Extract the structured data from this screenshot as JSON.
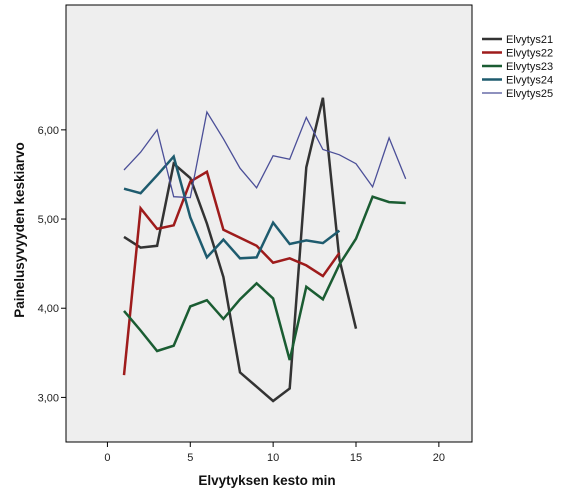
{
  "chart_data": {
    "type": "line",
    "xlabel": "Elvytyksen kesto min",
    "ylabel": "Painelusyvyyden keskiarvo",
    "xlim": [
      -2.5,
      22
    ],
    "ylim": [
      2.5,
      7.4
    ],
    "xticks": [
      0,
      5,
      10,
      15,
      20
    ],
    "yticks": [
      3,
      4,
      5,
      6
    ],
    "xtick_labels": [
      "0",
      "5",
      "10",
      "15",
      "20"
    ],
    "ytick_labels": [
      "3,00",
      "4,00",
      "5,00",
      "6,00"
    ],
    "grid": false,
    "background": "#eeeeee",
    "legend_position": "right",
    "series": [
      {
        "name": "Elvytys21",
        "color": "#333333",
        "width": 2.5,
        "x": [
          1,
          2,
          3,
          4,
          5,
          6,
          7,
          8,
          9,
          10,
          11,
          12,
          13,
          14,
          15
        ],
        "y": [
          4.8,
          4.68,
          4.7,
          5.62,
          5.46,
          4.95,
          4.35,
          3.28,
          3.12,
          2.96,
          3.1,
          5.58,
          6.36,
          4.55,
          3.77
        ]
      },
      {
        "name": "Elvytys22",
        "color": "#9e1b1b",
        "width": 2.5,
        "x": [
          1,
          2,
          3,
          4,
          5,
          6,
          7,
          8,
          9,
          10,
          11,
          12,
          13,
          14
        ],
        "y": [
          3.25,
          5.12,
          4.89,
          4.93,
          5.42,
          5.53,
          4.88,
          4.79,
          4.7,
          4.51,
          4.56,
          4.48,
          4.36,
          4.62
        ]
      },
      {
        "name": "Elvytys23",
        "color": "#1a5c32",
        "width": 2.5,
        "x": [
          1,
          2,
          3,
          4,
          5,
          6,
          7,
          8,
          9,
          10,
          11,
          12,
          13,
          14,
          15,
          16,
          17,
          18
        ],
        "y": [
          3.97,
          3.75,
          3.52,
          3.58,
          4.02,
          4.09,
          3.88,
          4.1,
          4.28,
          4.11,
          3.42,
          4.24,
          4.1,
          4.49,
          4.78,
          5.25,
          5.19,
          5.18
        ]
      },
      {
        "name": "Elvytys24",
        "color": "#1e5b6e",
        "width": 2.5,
        "x": [
          1,
          2,
          3,
          4,
          5,
          6,
          7,
          8,
          9,
          10,
          11,
          12,
          13,
          14
        ],
        "y": [
          5.34,
          5.29,
          5.49,
          5.7,
          5.02,
          4.57,
          4.77,
          4.56,
          4.57,
          4.96,
          4.72,
          4.76,
          4.73,
          4.87
        ]
      },
      {
        "name": "Elvytys25",
        "color": "#4b4f98",
        "width": 1.3,
        "x": [
          1,
          2,
          3,
          4,
          5,
          6,
          7,
          8,
          9,
          10,
          11,
          12,
          13,
          14,
          15,
          16,
          17,
          18
        ],
        "y": [
          5.55,
          5.75,
          6.0,
          5.25,
          5.24,
          6.2,
          5.9,
          5.57,
          5.35,
          5.71,
          5.67,
          6.14,
          5.78,
          5.72,
          5.62,
          5.36,
          5.91,
          5.45
        ]
      }
    ]
  }
}
